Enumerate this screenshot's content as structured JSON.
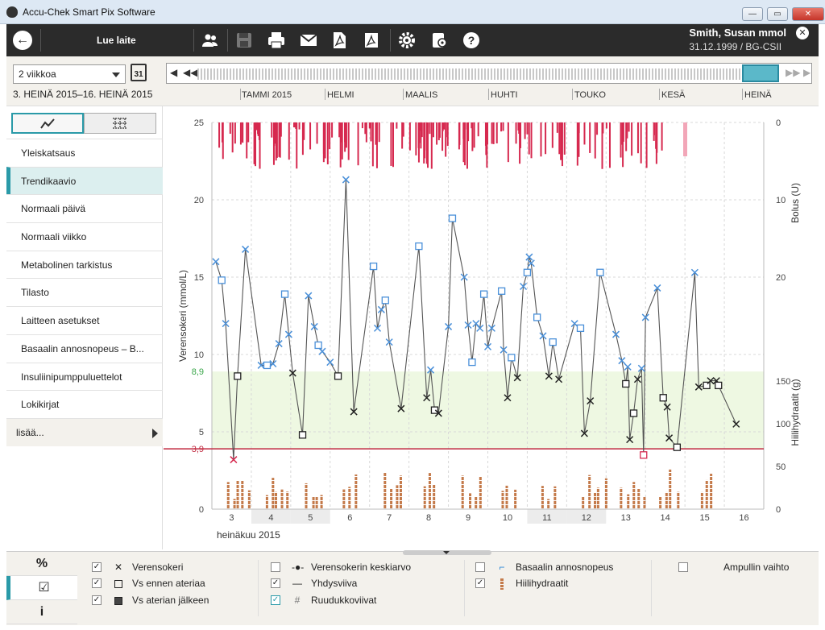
{
  "window": {
    "title": "Accu-Chek Smart Pix Software"
  },
  "toolbar": {
    "read_device_label": "Lue laite",
    "patient_name": "Smith, Susan mmol",
    "patient_info": "31.12.1999 / BG-CSII"
  },
  "controls": {
    "period": "2 viikkoa",
    "calendar_day": "31",
    "date_range": "3. HEINÄ 2015–16. HEINÄ 2015",
    "months": [
      "TAMMI 2015",
      "HELMI",
      "MAALIS",
      "HUHTI",
      "TOUKO",
      "KESÄ",
      "HEINÄ"
    ]
  },
  "sidebar": {
    "items": [
      "Yleiskatsaus",
      "Trendikaavio",
      "Normaali päivä",
      "Normaali viikko",
      "Metabolinen tarkistus",
      "Tilasto",
      "Laitteen asetukset",
      "Basaalin annosnopeus – B...",
      "Insuliinipumppuluettelot",
      "Lokikirjat"
    ],
    "active_index": 1,
    "more_label": "lisää..."
  },
  "colors": {
    "accent": "#2a9aa8",
    "bg_marker": "#4a90d9",
    "bolus": "#d6294f",
    "carbs": "#c47a4a",
    "target_zone": "#eef8e2",
    "hypo_line": "#c0283f"
  },
  "chart_data": {
    "type": "scatter",
    "title": "Trendikaavio",
    "xlabel": "heinäkuu 2015",
    "x_ticks": [
      "3",
      "4",
      "5",
      "6",
      "7",
      "8",
      "9",
      "10",
      "11",
      "12",
      "13",
      "14",
      "15",
      "16"
    ],
    "ylabel_left": "Verensokeri (mmol/L)",
    "ylim_left": [
      0,
      25
    ],
    "y_ticks_left": [
      "0",
      "5",
      "10",
      "15",
      "20",
      "25"
    ],
    "target_upper": 8.9,
    "target_upper_label": "8,9",
    "hypo_threshold": 3.9,
    "hypo_label": "3,9",
    "ylabel_bolus": "Bolus (U)",
    "bolus_ticks": [
      "0",
      "10",
      "20"
    ],
    "ylabel_carbs": "Hiilihydraatit (g)",
    "carb_ticks": [
      "0",
      "50",
      "100",
      "150"
    ],
    "series": [
      {
        "name": "Verensokeri",
        "points": [
          [
            2.6,
            16
          ],
          [
            2.75,
            14.8
          ],
          [
            2.85,
            12
          ],
          [
            3.05,
            3.2
          ],
          [
            3.15,
            8.6
          ],
          [
            3.35,
            16.8
          ],
          [
            3.75,
            9.3
          ],
          [
            3.9,
            9.3
          ],
          [
            4.05,
            9.4
          ],
          [
            4.2,
            10.7
          ],
          [
            4.35,
            13.9
          ],
          [
            4.45,
            11.3
          ],
          [
            4.55,
            8.8
          ],
          [
            4.8,
            4.8
          ],
          [
            4.95,
            13.8
          ],
          [
            5.1,
            11.8
          ],
          [
            5.2,
            10.6
          ],
          [
            5.3,
            10.2
          ],
          [
            5.5,
            9.5
          ],
          [
            5.7,
            8.6
          ],
          [
            5.9,
            21.3
          ],
          [
            6.1,
            6.3
          ],
          [
            6.6,
            15.7
          ],
          [
            6.7,
            11.7
          ],
          [
            6.8,
            12.9
          ],
          [
            6.9,
            13.5
          ],
          [
            7.0,
            10.8
          ],
          [
            7.3,
            6.5
          ],
          [
            7.75,
            17
          ],
          [
            7.95,
            7.2
          ],
          [
            8.05,
            9
          ],
          [
            8.15,
            6.4
          ],
          [
            8.25,
            6.2
          ],
          [
            8.5,
            11.8
          ],
          [
            8.6,
            18.8
          ],
          [
            8.9,
            15
          ],
          [
            9.0,
            11.9
          ],
          [
            9.1,
            9.5
          ],
          [
            9.2,
            12
          ],
          [
            9.3,
            11.7
          ],
          [
            9.4,
            13.9
          ],
          [
            9.5,
            10.5
          ],
          [
            9.6,
            11.7
          ],
          [
            9.85,
            14.1
          ],
          [
            9.9,
            10.3
          ],
          [
            10.0,
            7.2
          ],
          [
            10.1,
            9.8
          ],
          [
            10.25,
            8.5
          ],
          [
            10.4,
            14.4
          ],
          [
            10.5,
            15.3
          ],
          [
            10.55,
            16.3
          ],
          [
            10.6,
            15.9
          ],
          [
            10.75,
            12.4
          ],
          [
            10.9,
            11.2
          ],
          [
            11.05,
            8.6
          ],
          [
            11.15,
            10.8
          ],
          [
            11.3,
            8.4
          ],
          [
            11.7,
            12
          ],
          [
            11.85,
            11.7
          ],
          [
            11.95,
            4.9
          ],
          [
            12.1,
            7
          ],
          [
            12.35,
            15.3
          ],
          [
            12.75,
            11.3
          ],
          [
            12.9,
            9.6
          ],
          [
            13.0,
            8.1
          ],
          [
            13.05,
            9.2
          ],
          [
            13.1,
            4.5
          ],
          [
            13.2,
            6.2
          ],
          [
            13.3,
            8.4
          ],
          [
            13.4,
            9.1
          ],
          [
            13.45,
            3.5
          ],
          [
            13.5,
            12.4
          ],
          [
            13.8,
            14.3
          ],
          [
            13.95,
            7.2
          ],
          [
            14.05,
            6.6
          ],
          [
            14.1,
            4.6
          ],
          [
            14.3,
            4
          ],
          [
            14.75,
            15.3
          ],
          [
            14.85,
            7.9
          ],
          [
            15.05,
            8
          ],
          [
            15.15,
            8.3
          ],
          [
            15.3,
            8.3
          ],
          [
            15.35,
            8
          ],
          [
            15.8,
            5.5
          ]
        ]
      }
    ]
  },
  "legend": {
    "tabs": [
      "%",
      "☑",
      "i"
    ],
    "items": [
      {
        "label": "Verensokeri",
        "checked": true
      },
      {
        "label": "Vs ennen ateriaa",
        "checked": true
      },
      {
        "label": "Vs aterian jälkeen",
        "checked": true
      },
      {
        "label": "Verensokerin keskiarvo",
        "checked": false
      },
      {
        "label": "Yhdysviiva",
        "checked": true
      },
      {
        "label": "Ruudukkoviivat",
        "checked": true
      },
      {
        "label": "Basaalin annosnopeus",
        "checked": false
      },
      {
        "label": "Hiilihydraatit",
        "checked": true
      },
      {
        "label": "Ampullin vaihto",
        "checked": false
      }
    ]
  }
}
